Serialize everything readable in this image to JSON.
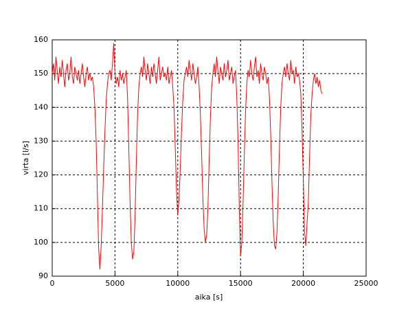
{
  "chart_data": {
    "type": "line",
    "xlabel": "aika [s]",
    "ylabel": "virta [l/s]",
    "xlim": [
      0,
      25000
    ],
    "xticks": [
      0,
      5000,
      10000,
      15000,
      20000,
      25000
    ],
    "ylim": [
      90,
      160
    ],
    "yticks": [
      90,
      100,
      110,
      120,
      130,
      140,
      150,
      160
    ],
    "grid": true,
    "x": [
      0,
      100,
      200,
      300,
      400,
      500,
      600,
      700,
      800,
      900,
      1000,
      1100,
      1200,
      1300,
      1400,
      1500,
      1600,
      1700,
      1800,
      1900,
      2000,
      2100,
      2200,
      2300,
      2400,
      2500,
      2600,
      2700,
      2800,
      2900,
      3000,
      3100,
      3200,
      3300,
      3400,
      3500,
      3600,
      3700,
      3800,
      3900,
      4000,
      4100,
      4200,
      4300,
      4400,
      4500,
      4600,
      4700,
      4800,
      4900,
      5000,
      5100,
      5200,
      5300,
      5400,
      5500,
      5600,
      5700,
      5800,
      5900,
      6000,
      6100,
      6200,
      6300,
      6400,
      6500,
      6600,
      6700,
      6800,
      6900,
      7000,
      7100,
      7200,
      7300,
      7400,
      7500,
      7600,
      7700,
      7800,
      7900,
      8000,
      8100,
      8200,
      8300,
      8400,
      8500,
      8600,
      8700,
      8800,
      8900,
      9000,
      9100,
      9200,
      9300,
      9400,
      9500,
      9600,
      9700,
      9800,
      9900,
      10000,
      10100,
      10200,
      10300,
      10400,
      10500,
      10600,
      10700,
      10800,
      10900,
      11000,
      11100,
      11200,
      11300,
      11400,
      11500,
      11600,
      11700,
      11800,
      11900,
      12000,
      12100,
      12200,
      12300,
      12400,
      12500,
      12600,
      12700,
      12800,
      12900,
      13000,
      13100,
      13200,
      13300,
      13400,
      13500,
      13600,
      13700,
      13800,
      13900,
      14000,
      14100,
      14200,
      14300,
      14400,
      14500,
      14600,
      14700,
      14800,
      14900,
      15000,
      15100,
      15200,
      15300,
      15400,
      15500,
      15600,
      15700,
      15800,
      15900,
      16000,
      16100,
      16200,
      16300,
      16400,
      16500,
      16600,
      16700,
      16800,
      16900,
      17000,
      17100,
      17200,
      17300,
      17400,
      17500,
      17600,
      17700,
      17800,
      17900,
      18000,
      18100,
      18200,
      18300,
      18400,
      18500,
      18600,
      18700,
      18800,
      18900,
      19000,
      19100,
      19200,
      19300,
      19400,
      19500,
      19600,
      19700,
      19800,
      19900,
      20000,
      20100,
      20200,
      20300,
      20400,
      20500,
      20600,
      20700,
      20800,
      20900,
      21000,
      21100,
      21200,
      21300,
      21400,
      21500
    ],
    "series": [
      {
        "color": "#ff0000",
        "values": [
          150,
          153,
          148,
          155,
          151,
          147,
          152,
          149,
          154,
          150,
          146,
          151,
          153,
          148,
          150,
          155,
          149,
          147,
          152,
          150,
          148,
          151,
          147,
          150,
          153,
          149,
          146,
          150,
          152,
          148,
          150,
          148,
          149,
          146,
          140,
          130,
          114,
          98,
          92,
          99,
          110,
          122,
          133,
          142,
          147,
          150,
          151,
          148,
          153,
          159,
          150,
          147,
          149,
          146,
          151,
          148,
          150,
          147,
          149,
          151,
          143,
          128,
          112,
          100,
          95,
          97,
          108,
          124,
          138,
          146,
          150,
          152,
          149,
          155,
          151,
          148,
          153,
          150,
          147,
          152,
          149,
          153,
          150,
          147,
          151,
          155,
          148,
          150,
          152,
          149,
          150,
          148,
          152,
          147,
          149,
          151,
          146,
          140,
          128,
          115,
          108,
          113,
          122,
          133,
          142,
          148,
          150,
          152,
          149,
          154,
          151,
          148,
          153,
          150,
          147,
          149,
          152,
          146,
          138,
          126,
          113,
          104,
          100,
          102,
          110,
          124,
          137,
          146,
          150,
          153,
          149,
          155,
          151,
          147,
          152,
          150,
          148,
          153,
          149,
          151,
          154,
          148,
          150,
          152,
          147,
          149,
          151,
          143,
          130,
          110,
          96,
          100,
          112,
          126,
          139,
          147,
          151,
          149,
          154,
          150,
          148,
          152,
          155,
          149,
          151,
          147,
          153,
          150,
          148,
          152,
          150,
          147,
          149,
          143,
          132,
          118,
          106,
          99,
          98,
          103,
          114,
          128,
          140,
          147,
          150,
          152,
          149,
          153,
          150,
          148,
          154,
          150,
          151,
          147,
          152,
          149,
          150,
          148,
          144,
          133,
          118,
          103,
          99,
          106,
          112,
          126,
          138,
          144,
          148,
          150,
          147,
          149,
          146,
          148,
          145,
          144
        ]
      }
    ]
  }
}
